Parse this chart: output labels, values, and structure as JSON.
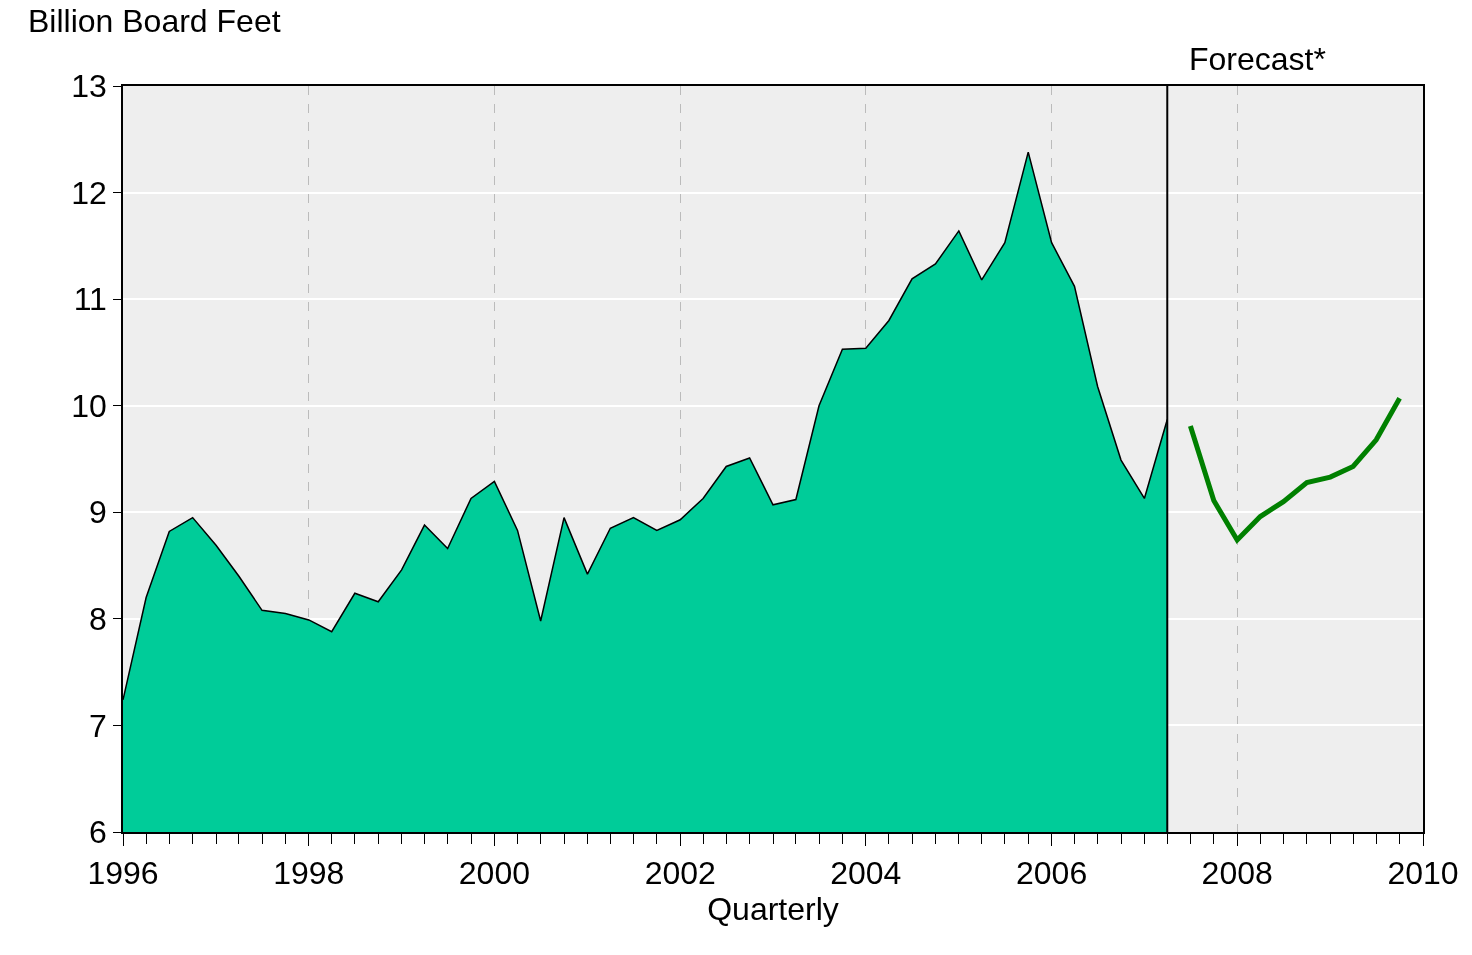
{
  "chart_data": {
    "type": "area",
    "ylabel": "Billion Board Feet",
    "xlabel": "Quarterly",
    "series": [
      {
        "color": "#00cc99",
        "x": [
          "1996-01",
          "1996-04",
          "1996-07",
          "1996-10",
          "1997-01",
          "1997-04",
          "1997-07",
          "1997-10",
          "1998-01",
          "1998-04",
          "1998-07",
          "1998-10",
          "1999-01",
          "1999-04",
          "1999-07",
          "1999-10",
          "2000-01",
          "2000-04",
          "2000-07",
          "2000-10",
          "2001-01",
          "2001-04",
          "2001-07",
          "2001-10",
          "2002-01",
          "2002-04",
          "2002-07",
          "2002-10",
          "2003-01",
          "2003-04",
          "2003-07",
          "2003-10",
          "2004-01",
          "2004-04",
          "2004-07",
          "2004-10",
          "2005-01",
          "2005-04",
          "2005-07",
          "2005-10",
          "2006-01",
          "2006-04",
          "2006-07",
          "2006-10",
          "2007-01",
          "2007-04"
        ],
        "values": [
          7.24,
          8.2,
          8.82,
          8.95,
          8.69,
          8.4,
          8.08,
          8.05,
          7.99,
          7.88,
          8.24,
          8.16,
          8.46,
          8.88,
          8.66,
          9.13,
          9.29,
          8.83,
          7.98,
          8.95,
          8.42,
          8.85,
          8.95,
          8.83,
          8.93,
          9.13,
          9.43,
          9.51,
          9.07,
          9.12,
          10.0,
          10.53,
          10.54,
          10.8,
          11.19,
          11.33,
          11.64,
          11.18,
          11.53,
          12.38,
          11.53,
          11.12,
          10.18,
          9.49,
          9.13,
          9.87
        ]
      },
      {
        "type": "line",
        "color": "#008000",
        "x": [
          "2007-07",
          "2007-10",
          "2008-01",
          "2008-04",
          "2008-07",
          "2008-10",
          "2009-01",
          "2009-04",
          "2009-07",
          "2009-10"
        ],
        "values": [
          9.81,
          9.11,
          8.74,
          8.96,
          9.1,
          9.28,
          9.33,
          9.43,
          9.68,
          10.07
        ]
      }
    ],
    "xlim": [
      "1996-01",
      "2010-01"
    ],
    "xticks": [
      "1996",
      "1998",
      "2000",
      "2002",
      "2004",
      "2006",
      "2008",
      "2010"
    ],
    "ylim": [
      6,
      13
    ],
    "yticks": [
      6,
      7,
      8,
      9,
      10,
      11,
      12,
      13
    ],
    "grid": true,
    "ref_lines": [
      {
        "axis": "x",
        "value": "2007-04",
        "label": "Forecast*",
        "color": "#000000",
        "line_style": "solid"
      }
    ]
  }
}
